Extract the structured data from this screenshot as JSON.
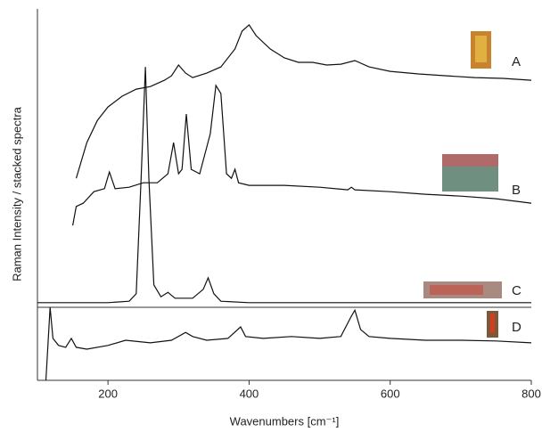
{
  "chart_data": {
    "type": "line",
    "xlabel": "Wavenumbers [cm⁻¹]",
    "ylabel": "Raman Intensity / stacked spectra",
    "xlim": [
      100,
      800
    ],
    "xticks": [
      200,
      400,
      600,
      800
    ],
    "ylim": [
      0,
      100
    ],
    "series": [
      {
        "name": "A",
        "color": "#111111",
        "x": [
          155,
          170,
          185,
          200,
          220,
          240,
          260,
          280,
          290,
          300,
          310,
          320,
          340,
          360,
          380,
          390,
          400,
          410,
          430,
          450,
          470,
          490,
          510,
          530,
          550,
          570,
          600,
          640,
          680,
          720,
          760,
          800
        ],
        "values": [
          54.4,
          64.0,
          70.0,
          73.6,
          76.5,
          78.4,
          79.1,
          80.8,
          82.0,
          84.9,
          82.7,
          81.5,
          82.7,
          84.4,
          89.2,
          94.0,
          95.7,
          92.8,
          89.2,
          86.8,
          85.6,
          85.6,
          84.9,
          85.1,
          86.1,
          84.4,
          83.2,
          82.5,
          82.0,
          81.5,
          81.3,
          80.8
        ]
      },
      {
        "name": "B",
        "color": "#111111",
        "x": [
          150,
          155,
          165,
          180,
          195,
          202,
          210,
          230,
          250,
          270,
          285,
          293,
          300,
          305,
          311,
          318,
          330,
          345,
          353,
          360,
          368,
          375,
          380,
          385,
          400,
          450,
          500,
          540,
          545,
          550,
          600,
          650,
          700,
          750,
          800
        ],
        "values": [
          41.7,
          46.8,
          47.7,
          50.8,
          51.6,
          56.1,
          51.6,
          52.0,
          53.2,
          53.2,
          55.6,
          64.0,
          55.6,
          56.8,
          71.7,
          56.8,
          55.6,
          66.4,
          79.4,
          77.2,
          55.6,
          54.4,
          56.8,
          53.2,
          52.5,
          52.5,
          52.0,
          51.3,
          52.0,
          51.3,
          50.8,
          50.1,
          49.6,
          48.9,
          47.7
        ]
      },
      {
        "name": "C",
        "color": "#111111",
        "x": [
          100,
          200,
          230,
          240,
          247,
          253,
          258,
          265,
          275,
          285,
          295,
          320,
          335,
          342,
          350,
          360,
          400,
          600,
          800
        ],
        "values": [
          20.9,
          20.9,
          21.3,
          23.3,
          54.4,
          84.4,
          54.4,
          25.7,
          22.5,
          23.7,
          22.1,
          22.1,
          24.5,
          27.6,
          23.3,
          21.3,
          20.9,
          20.9,
          20.9
        ]
      },
      {
        "name": "D",
        "color": "#111111",
        "x": [
          112,
          118,
          122,
          130,
          140,
          148,
          155,
          170,
          200,
          225,
          260,
          290,
          310,
          320,
          340,
          370,
          388,
          395,
          420,
          460,
          500,
          530,
          545,
          550,
          558,
          570,
          600,
          650,
          700,
          750,
          800
        ],
        "values": [
          0,
          19.7,
          11.3,
          9.4,
          8.9,
          11.3,
          8.9,
          8.4,
          9.4,
          10.8,
          10.1,
          10.8,
          12.9,
          11.8,
          10.8,
          11.3,
          14.4,
          11.8,
          11.3,
          11.8,
          11.3,
          11.8,
          17.3,
          18.9,
          13.7,
          11.8,
          11.3,
          10.8,
          10.8,
          10.6,
          10.1
        ]
      }
    ]
  }
}
